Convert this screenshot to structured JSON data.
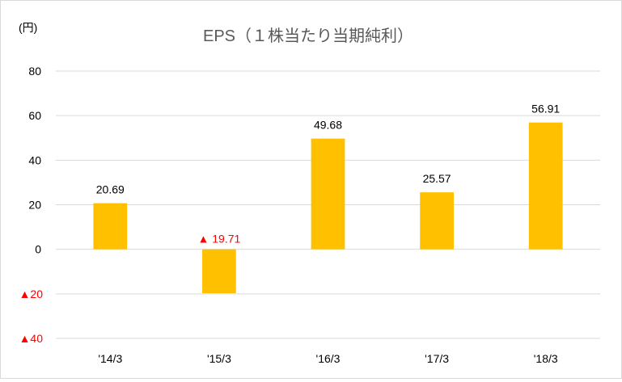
{
  "chart_data": {
    "type": "bar",
    "title": "EPS（１株当たり当期純利）",
    "unit_label": "(円)",
    "categories": [
      "'14/3",
      "'15/3",
      "'16/3",
      "'17/3",
      "'18/3"
    ],
    "values": [
      20.69,
      -19.71,
      49.68,
      25.57,
      56.91
    ],
    "data_labels": [
      "20.69",
      "▲ 19.71",
      "49.68",
      "25.57",
      "56.91"
    ],
    "ylim": [
      -40,
      80
    ],
    "y_ticks": [
      {
        "value": 80,
        "label": "80"
      },
      {
        "value": 60,
        "label": "60"
      },
      {
        "value": 40,
        "label": "40"
      },
      {
        "value": 20,
        "label": "20"
      },
      {
        "value": 0,
        "label": "0"
      },
      {
        "value": -20,
        "label": "▲20"
      },
      {
        "value": -40,
        "label": "▲40"
      }
    ],
    "grid": true,
    "legend": "none",
    "colors": {
      "bar": "#ffc000",
      "negative_text": "#ff0000",
      "grid": "#d9d9d9",
      "title": "#595959"
    }
  }
}
